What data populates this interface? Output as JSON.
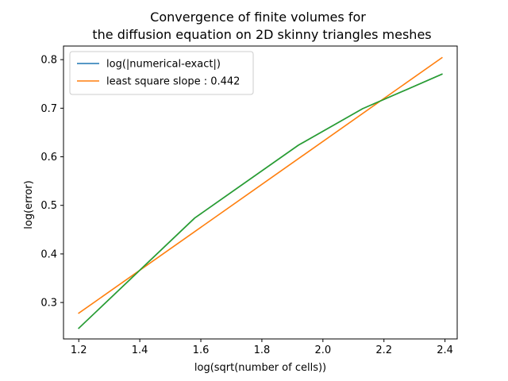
{
  "chart_data": {
    "type": "line",
    "title_line1": "Convergence of finite volumes for",
    "title_line2": "the diffusion equation on 2D skinny triangles meshes",
    "xlabel": "log(sqrt(number of cells))",
    "ylabel": "log(error)",
    "xlim": [
      1.15,
      2.44
    ],
    "ylim": [
      0.225,
      0.828
    ],
    "xticks": [
      1.2,
      1.4,
      1.6,
      1.8,
      2.0,
      2.2,
      2.4
    ],
    "yticks": [
      0.3,
      0.4,
      0.5,
      0.6,
      0.7,
      0.8
    ],
    "xtick_labels": [
      "1.2",
      "1.4",
      "1.6",
      "1.8",
      "2.0",
      "2.2",
      "2.4"
    ],
    "ytick_labels": [
      "0.3",
      "0.4",
      "0.5",
      "0.6",
      "0.7",
      "0.8"
    ],
    "legend_position": "top-left",
    "series": [
      {
        "name": "log(|numerical-exact|)",
        "color": "#1f77b4",
        "x": [
          1.2,
          1.58,
          1.92,
          2.13,
          2.39
        ],
        "y": [
          0.247,
          0.474,
          0.624,
          0.699,
          0.77
        ],
        "in_legend": true
      },
      {
        "name": "least square slope : 0.442",
        "color": "#ff7f0e",
        "x": [
          1.2,
          2.39
        ],
        "y": [
          0.278,
          0.804
        ],
        "in_legend": true
      },
      {
        "color": "#2ca02c",
        "x": [
          1.2,
          1.58,
          1.92,
          2.13,
          2.39
        ],
        "y": [
          0.247,
          0.474,
          0.624,
          0.699,
          0.77
        ],
        "in_legend": false
      }
    ]
  }
}
